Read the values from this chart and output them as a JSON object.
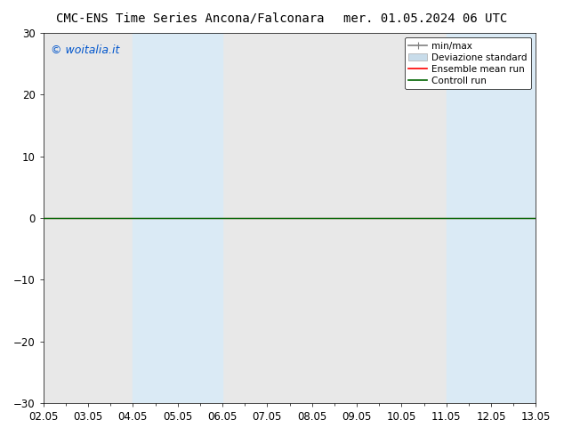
{
  "title_left": "CMC-ENS Time Series Ancona/Falconara",
  "title_right": "mer. 01.05.2024 06 UTC",
  "watermark": "© woitalia.it",
  "watermark_color": "#0055cc",
  "ylim": [
    -30,
    30
  ],
  "yticks": [
    -30,
    -20,
    -10,
    0,
    10,
    20,
    30
  ],
  "xlim_start": 0,
  "xlim_end": 11,
  "xtick_positions": [
    0,
    1,
    2,
    3,
    4,
    5,
    6,
    7,
    8,
    9,
    10,
    11
  ],
  "xtick_labels": [
    "02.05",
    "03.05",
    "04.05",
    "05.05",
    "06.05",
    "07.05",
    "08.05",
    "09.05",
    "10.05",
    "11.05",
    "12.05",
    "13.05"
  ],
  "shaded_bands": [
    {
      "xstart": 2.0,
      "xend": 2.5
    },
    {
      "xstart": 2.5,
      "xend": 3.5
    },
    {
      "xstart": 3.5,
      "xend": 4.0
    },
    {
      "xstart": 9.0,
      "xend": 9.5
    },
    {
      "xstart": 9.5,
      "xend": 10.5
    },
    {
      "xstart": 10.5,
      "xend": 11.0
    }
  ],
  "shaded_color": "#daeaf5",
  "plot_bg_color": "#e8e8e8",
  "line_y": 0.0,
  "ensemble_mean_color": "#ff0000",
  "control_run_color": "#006400",
  "minmax_color": "#808080",
  "legend_items": [
    {
      "label": "min/max",
      "color": "#808080",
      "lw": 1.2
    },
    {
      "label": "Deviazione standard",
      "color": "#c8dcea",
      "lw": 8
    },
    {
      "label": "Ensemble mean run",
      "color": "#ff0000",
      "lw": 1.2
    },
    {
      "label": "Controll run",
      "color": "#006400",
      "lw": 1.2
    }
  ],
  "bg_color": "#ffffff",
  "title_fontsize": 10,
  "axis_fontsize": 8.5,
  "watermark_fontsize": 9,
  "legend_fontsize": 7.5
}
